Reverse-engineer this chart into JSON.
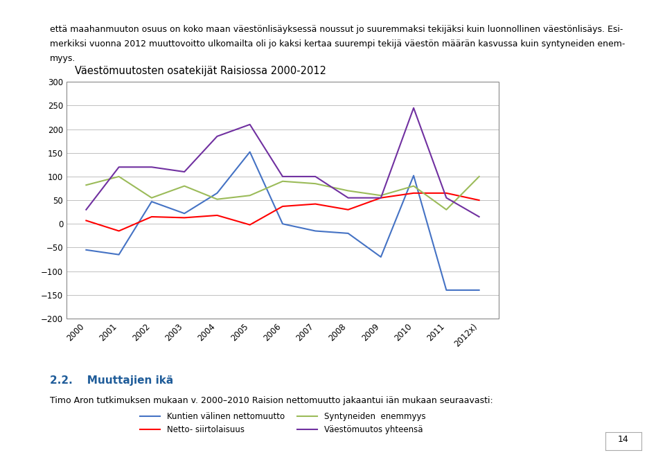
{
  "title": "Väestömuutosten osatekijät Raisiossa 2000-2012",
  "years": [
    "2000",
    "2001",
    "2002",
    "2003",
    "2004",
    "2005",
    "2006",
    "2007",
    "2008",
    "2009",
    "2010",
    "2011",
    "2012x)"
  ],
  "kuntien_valinen": [
    -55,
    -65,
    47,
    22,
    65,
    152,
    0,
    -15,
    -20,
    -70,
    102,
    -140,
    -140
  ],
  "netto_siirtolaisuus": [
    7,
    -15,
    15,
    13,
    18,
    -2,
    37,
    42,
    30,
    55,
    65,
    65,
    50
  ],
  "syntyneiden_enemmyys": [
    82,
    100,
    55,
    80,
    52,
    60,
    90,
    85,
    70,
    60,
    80,
    30,
    100
  ],
  "vaestomuutos_yhteensa": [
    30,
    120,
    120,
    110,
    185,
    210,
    100,
    100,
    55,
    55,
    245,
    55,
    15
  ],
  "line_colors": {
    "kuntien_valinen": "#4472C4",
    "netto_siirtolaisuus": "#FF0000",
    "syntyneiden_enemmyys": "#9BBB59",
    "vaestomuutos_yhteensa": "#7030A0"
  },
  "legend_labels": {
    "kuntien_valinen": "Kuntien välinen nettomuutto",
    "netto_siirtolaisuus": "Netto- siirtolaisuus",
    "syntyneiden_enemmyys": "Syntyneiden  enemmyys",
    "vaestomuutos_yhteensa": "Väestömuutos yhteensä"
  },
  "ylim": [
    -200,
    300
  ],
  "yticks": [
    -200,
    -150,
    -100,
    -50,
    0,
    50,
    100,
    150,
    200,
    250,
    300
  ],
  "bg_color": "#FFFFFF",
  "chart_bg": "#FFFFFF",
  "grid_color": "#C0C0C0",
  "border_color": "#AAAAAA",
  "title_fontsize": 10.5,
  "tick_fontsize": 8.5,
  "legend_fontsize": 8.5,
  "page_text_top1": "että maahanmuuton osuus on koko maan väestönlisäyksessä noussut jo suuremmaksi tekijäksi kuin luonnollinen väestönlisäys. Esi-",
  "page_text_top2": "merkiksi vuonna 2012 muuttovoitto ulkomailta oli jo kaksi kertaa suurempi tekijä väestön määrän kasvussa kuin syntyneiden enem-",
  "page_text_top3": "myys.",
  "page_text_head": "2.2.    Muuttajien ikä",
  "page_text_body": "Timo Aron tutkimuksen mukaan v. 2000–2010 Raision nettomuutto jakaantui iän mukaan seuraavasti:",
  "page_num": "14"
}
